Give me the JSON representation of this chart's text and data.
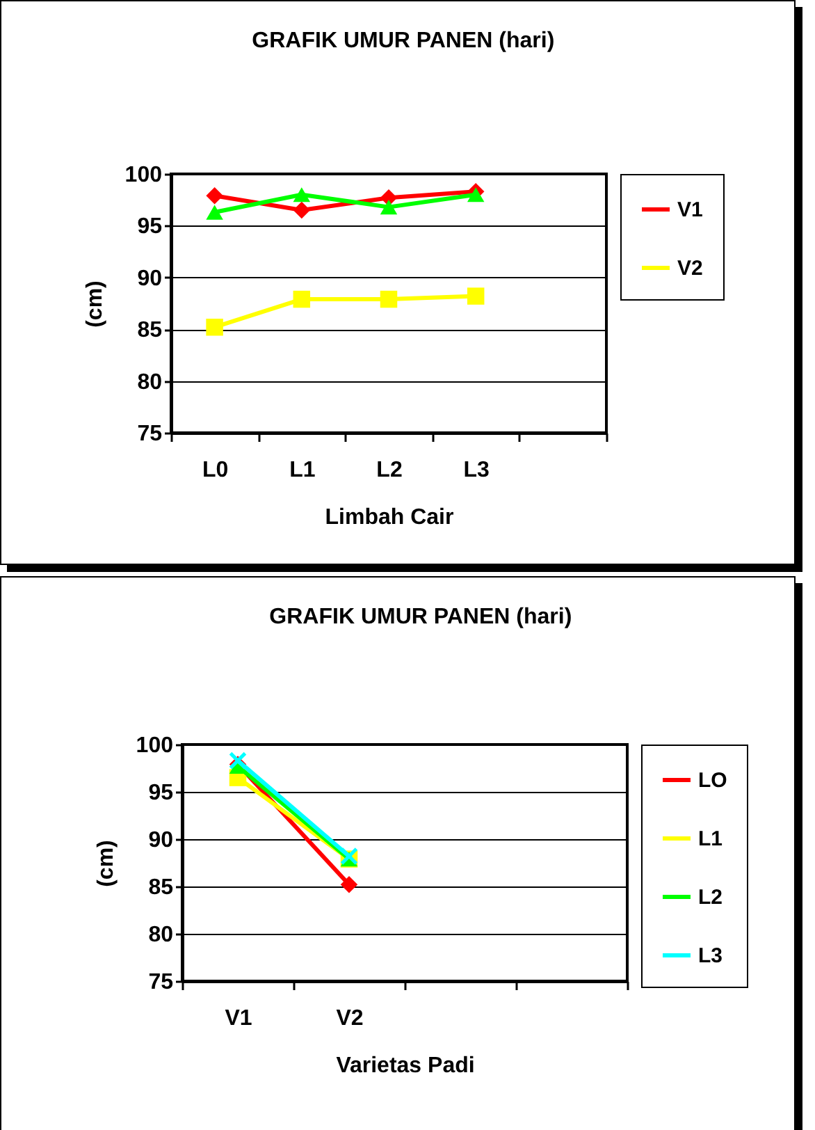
{
  "chart_data": [
    {
      "type": "line",
      "title": "GRAFIK  UMUR PANEN  (hari)",
      "xlabel": "Limbah Cair",
      "ylabel": "(cm)",
      "categories": [
        "L0",
        "L1",
        "L2",
        "L3",
        null
      ],
      "series": [
        {
          "name": "V1",
          "color": "#ff0000",
          "marker": "diamond",
          "values": [
            97.9,
            96.5,
            97.7,
            98.3,
            null
          ]
        },
        {
          "name": "V2",
          "color": "#ffff00",
          "marker": "square",
          "values": [
            85.2,
            87.9,
            87.9,
            88.2,
            null
          ]
        },
        {
          "color": "#00ff00",
          "marker": "triangle",
          "values": [
            96.3,
            98.0,
            96.8,
            98.0,
            null
          ]
        }
      ],
      "ylim": [
        75,
        100
      ],
      "yticks": [
        75,
        80,
        85,
        90,
        95,
        100
      ],
      "grid": "y",
      "legend": "right"
    },
    {
      "type": "line",
      "title": "GRAFIK  UMUR PANEN  (hari)",
      "xlabel": "Varietas Padi",
      "ylabel": "(cm)",
      "categories": [
        "V1",
        "V2",
        null,
        null
      ],
      "series": [
        {
          "name": "LO",
          "color": "#ff0000",
          "marker": "diamond",
          "values": [
            97.9,
            85.2,
            null,
            null
          ]
        },
        {
          "name": "L1",
          "color": "#ffff00",
          "marker": "square",
          "values": [
            96.5,
            87.9,
            null,
            null
          ]
        },
        {
          "name": "L2",
          "color": "#00ff00",
          "marker": "triangle",
          "values": [
            97.7,
            87.9,
            null,
            null
          ]
        },
        {
          "name": "L3",
          "color": "#00ffff",
          "marker": "cross",
          "values": [
            98.3,
            88.2,
            null,
            null
          ]
        }
      ],
      "ylim": [
        75,
        100
      ],
      "yticks": [
        75,
        80,
        85,
        90,
        95,
        100
      ],
      "grid": "y",
      "legend": "right"
    }
  ]
}
